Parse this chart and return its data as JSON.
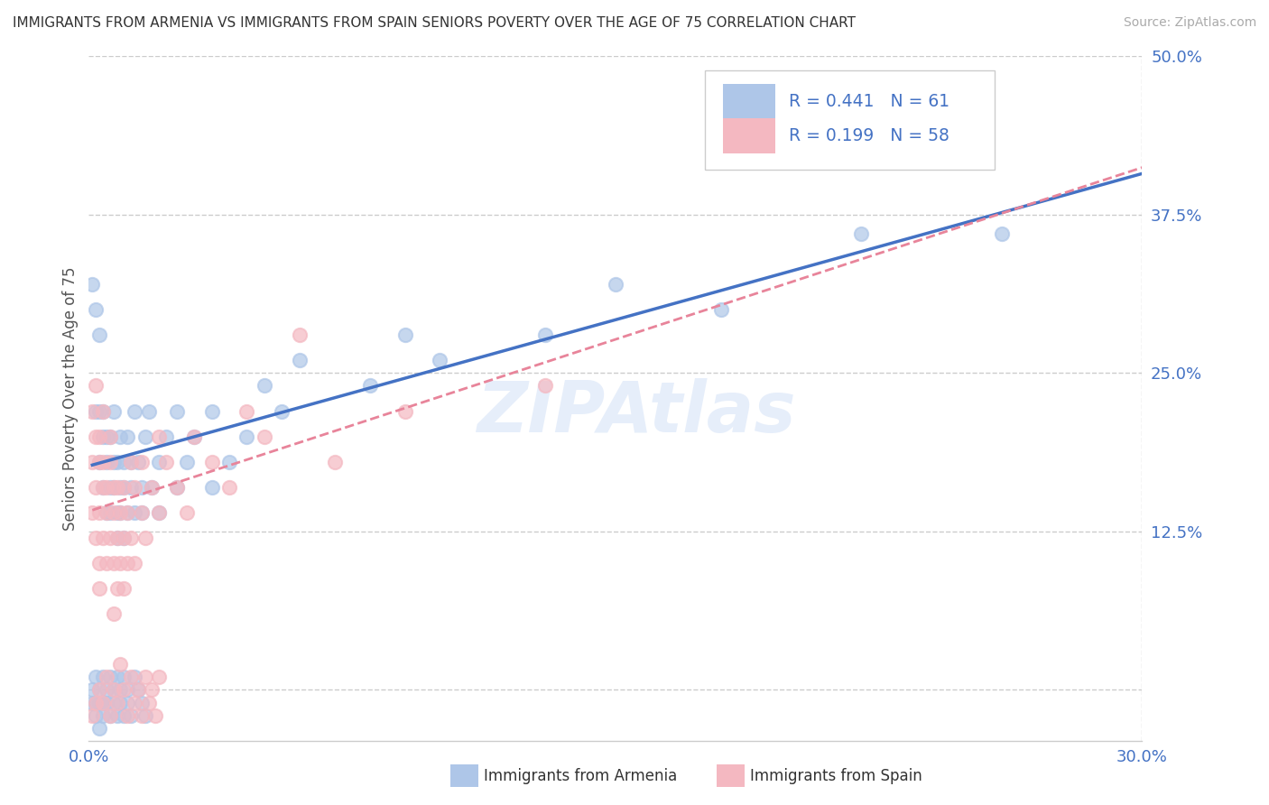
{
  "title": "IMMIGRANTS FROM ARMENIA VS IMMIGRANTS FROM SPAIN SENIORS POVERTY OVER THE AGE OF 75 CORRELATION CHART",
  "source": "Source: ZipAtlas.com",
  "legend_labels": [
    "Immigrants from Armenia",
    "Immigrants from Spain"
  ],
  "ylabel": "Seniors Poverty Over the Age of 75",
  "xmin": 0.0,
  "xmax": 0.3,
  "ymin": -0.04,
  "ymax": 0.5,
  "yticks": [
    0.0,
    0.125,
    0.25,
    0.375,
    0.5
  ],
  "ytick_labels": [
    "",
    "12.5%",
    "25.0%",
    "37.5%",
    "50.0%"
  ],
  "xticks": [
    0.0,
    0.3
  ],
  "xtick_labels": [
    "0.0%",
    "30.0%"
  ],
  "grid_color": "#cccccc",
  "background_color": "#ffffff",
  "armenia_color": "#aec6e8",
  "spain_color": "#f4b8c1",
  "armenia_line_color": "#4472c4",
  "spain_line_color": "#e8849a",
  "R_armenia": 0.441,
  "N_armenia": 61,
  "R_spain": 0.199,
  "N_spain": 58,
  "legend_text_color": "#4472c4",
  "armenia_scatter": [
    [
      0.001,
      0.32
    ],
    [
      0.002,
      0.3
    ],
    [
      0.002,
      0.22
    ],
    [
      0.003,
      0.28
    ],
    [
      0.003,
      0.18
    ],
    [
      0.003,
      0.22
    ],
    [
      0.004,
      0.2
    ],
    [
      0.004,
      0.16
    ],
    [
      0.004,
      0.22
    ],
    [
      0.005,
      0.18
    ],
    [
      0.005,
      0.14
    ],
    [
      0.005,
      0.2
    ],
    [
      0.006,
      0.16
    ],
    [
      0.006,
      0.2
    ],
    [
      0.006,
      0.14
    ],
    [
      0.007,
      0.18
    ],
    [
      0.007,
      0.22
    ],
    [
      0.007,
      0.16
    ],
    [
      0.008,
      0.14
    ],
    [
      0.008,
      0.18
    ],
    [
      0.008,
      0.12
    ],
    [
      0.009,
      0.16
    ],
    [
      0.009,
      0.14
    ],
    [
      0.009,
      0.2
    ],
    [
      0.01,
      0.18
    ],
    [
      0.01,
      0.12
    ],
    [
      0.01,
      0.16
    ],
    [
      0.011,
      0.2
    ],
    [
      0.011,
      0.14
    ],
    [
      0.012,
      0.16
    ],
    [
      0.012,
      0.18
    ],
    [
      0.013,
      0.22
    ],
    [
      0.013,
      0.14
    ],
    [
      0.014,
      0.18
    ],
    [
      0.015,
      0.16
    ],
    [
      0.015,
      0.14
    ],
    [
      0.016,
      0.2
    ],
    [
      0.017,
      0.22
    ],
    [
      0.018,
      0.16
    ],
    [
      0.02,
      0.18
    ],
    [
      0.02,
      0.14
    ],
    [
      0.022,
      0.2
    ],
    [
      0.025,
      0.22
    ],
    [
      0.025,
      0.16
    ],
    [
      0.028,
      0.18
    ],
    [
      0.03,
      0.2
    ],
    [
      0.035,
      0.22
    ],
    [
      0.035,
      0.16
    ],
    [
      0.04,
      0.18
    ],
    [
      0.045,
      0.2
    ],
    [
      0.05,
      0.24
    ],
    [
      0.055,
      0.22
    ],
    [
      0.06,
      0.26
    ],
    [
      0.08,
      0.24
    ],
    [
      0.09,
      0.28
    ],
    [
      0.1,
      0.26
    ],
    [
      0.13,
      0.28
    ],
    [
      0.15,
      0.32
    ],
    [
      0.18,
      0.3
    ],
    [
      0.22,
      0.36
    ],
    [
      0.26,
      0.36
    ]
  ],
  "spain_scatter": [
    [
      0.001,
      0.22
    ],
    [
      0.001,
      0.18
    ],
    [
      0.001,
      0.14
    ],
    [
      0.002,
      0.2
    ],
    [
      0.002,
      0.16
    ],
    [
      0.002,
      0.12
    ],
    [
      0.002,
      0.24
    ],
    [
      0.003,
      0.18
    ],
    [
      0.003,
      0.14
    ],
    [
      0.003,
      0.1
    ],
    [
      0.003,
      0.08
    ],
    [
      0.003,
      0.2
    ],
    [
      0.004,
      0.22
    ],
    [
      0.004,
      0.16
    ],
    [
      0.004,
      0.12
    ],
    [
      0.004,
      0.18
    ],
    [
      0.005,
      0.14
    ],
    [
      0.005,
      0.1
    ],
    [
      0.005,
      0.16
    ],
    [
      0.006,
      0.2
    ],
    [
      0.006,
      0.12
    ],
    [
      0.006,
      0.18
    ],
    [
      0.007,
      0.14
    ],
    [
      0.007,
      0.1
    ],
    [
      0.007,
      0.16
    ],
    [
      0.007,
      0.06
    ],
    [
      0.008,
      0.12
    ],
    [
      0.008,
      0.08
    ],
    [
      0.008,
      0.16
    ],
    [
      0.009,
      0.14
    ],
    [
      0.009,
      0.1
    ],
    [
      0.01,
      0.12
    ],
    [
      0.01,
      0.08
    ],
    [
      0.01,
      0.16
    ],
    [
      0.011,
      0.14
    ],
    [
      0.011,
      0.1
    ],
    [
      0.012,
      0.18
    ],
    [
      0.012,
      0.12
    ],
    [
      0.013,
      0.16
    ],
    [
      0.013,
      0.1
    ],
    [
      0.015,
      0.14
    ],
    [
      0.015,
      0.18
    ],
    [
      0.016,
      0.12
    ],
    [
      0.018,
      0.16
    ],
    [
      0.02,
      0.14
    ],
    [
      0.02,
      0.2
    ],
    [
      0.022,
      0.18
    ],
    [
      0.025,
      0.16
    ],
    [
      0.028,
      0.14
    ],
    [
      0.03,
      0.2
    ],
    [
      0.035,
      0.18
    ],
    [
      0.04,
      0.16
    ],
    [
      0.045,
      0.22
    ],
    [
      0.05,
      0.2
    ],
    [
      0.06,
      0.28
    ],
    [
      0.07,
      0.18
    ],
    [
      0.09,
      0.22
    ],
    [
      0.13,
      0.24
    ]
  ],
  "spain_scatter_low": [
    [
      0.001,
      -0.02
    ],
    [
      0.002,
      -0.01
    ],
    [
      0.003,
      0.0
    ],
    [
      0.004,
      -0.01
    ],
    [
      0.005,
      0.01
    ],
    [
      0.006,
      -0.02
    ],
    [
      0.007,
      0.0
    ],
    [
      0.008,
      -0.01
    ],
    [
      0.009,
      0.02
    ],
    [
      0.01,
      0.0
    ],
    [
      0.011,
      -0.02
    ],
    [
      0.012,
      0.01
    ],
    [
      0.013,
      -0.01
    ],
    [
      0.014,
      0.0
    ],
    [
      0.015,
      -0.02
    ],
    [
      0.016,
      0.01
    ],
    [
      0.017,
      -0.01
    ],
    [
      0.018,
      0.0
    ],
    [
      0.019,
      -0.02
    ],
    [
      0.02,
      0.01
    ]
  ],
  "armenia_scatter_low": [
    [
      0.001,
      0.0
    ],
    [
      0.001,
      -0.01
    ],
    [
      0.002,
      0.01
    ],
    [
      0.002,
      -0.01
    ],
    [
      0.002,
      -0.02
    ],
    [
      0.003,
      0.0
    ],
    [
      0.003,
      -0.01
    ],
    [
      0.003,
      -0.03
    ],
    [
      0.004,
      0.01
    ],
    [
      0.004,
      -0.01
    ],
    [
      0.004,
      -0.02
    ],
    [
      0.005,
      0.0
    ],
    [
      0.005,
      -0.01
    ],
    [
      0.006,
      0.01
    ],
    [
      0.006,
      -0.02
    ],
    [
      0.007,
      0.0
    ],
    [
      0.007,
      -0.01
    ],
    [
      0.008,
      -0.02
    ],
    [
      0.008,
      0.01
    ],
    [
      0.009,
      0.0
    ],
    [
      0.009,
      -0.01
    ],
    [
      0.01,
      -0.02
    ],
    [
      0.01,
      0.01
    ],
    [
      0.011,
      0.0
    ],
    [
      0.011,
      -0.01
    ],
    [
      0.012,
      -0.02
    ],
    [
      0.013,
      0.01
    ],
    [
      0.014,
      0.0
    ],
    [
      0.015,
      -0.01
    ],
    [
      0.016,
      -0.02
    ]
  ]
}
